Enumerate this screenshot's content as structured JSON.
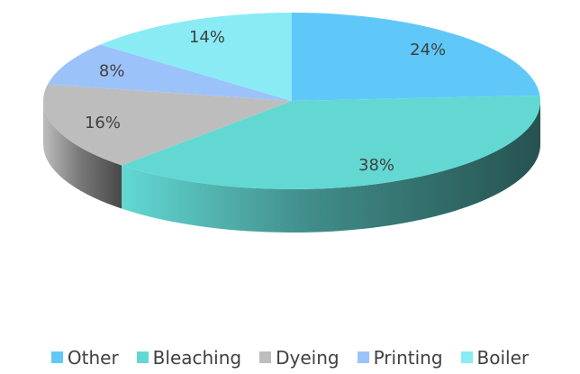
{
  "chart_data": {
    "type": "pie",
    "title": "",
    "categories": [
      "Other",
      "Bleaching",
      "Dyeing",
      "Printing",
      "Boiler"
    ],
    "values": [
      24,
      38,
      16,
      8,
      14
    ],
    "labels": [
      "24%",
      "38%",
      "16%",
      "8%",
      "14%"
    ],
    "colors": [
      "#5FC8F9",
      "#63D8D3",
      "#BDBDBD",
      "#9CC2FA",
      "#8AEBF5"
    ],
    "legend": "bottom",
    "style": "3d"
  }
}
